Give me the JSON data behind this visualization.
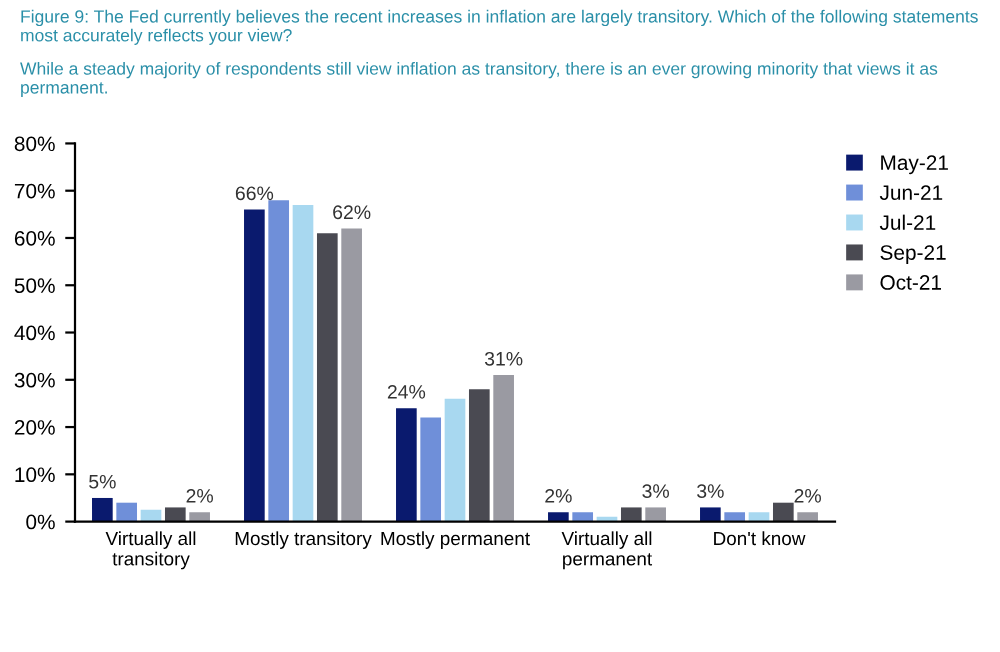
{
  "chart_data": {
    "type": "bar",
    "title": "Figure 9: The Fed currently believes the recent increases in inflation are largely transitory. Which of the following statements most accurately reflects your view?",
    "subtitle": "While a steady majority of respondents still view inflation as transitory, there is an ever growing minority that views it as permanent.",
    "categories": [
      "Virtually all transitory",
      "Mostly transitory",
      "Mostly permanent",
      "Virtually all permanent",
      "Don't know"
    ],
    "series": [
      {
        "name": "May-21",
        "color": "#0a1a6e",
        "values": [
          5,
          66,
          24,
          2,
          3
        ],
        "value_labels": [
          "5%",
          "66%",
          "24%",
          "2%",
          "3%"
        ]
      },
      {
        "name": "Jun-21",
        "color": "#6f8fd9",
        "values": [
          4,
          68,
          22,
          2,
          2
        ]
      },
      {
        "name": "Jul-21",
        "color": "#a8d8f0",
        "values": [
          2.5,
          67,
          26,
          1,
          2
        ]
      },
      {
        "name": "Sep-21",
        "color": "#4a4a52",
        "values": [
          3,
          61,
          28,
          3,
          4
        ]
      },
      {
        "name": "Oct-21",
        "color": "#9a9aa2",
        "values": [
          2,
          62,
          31,
          3,
          2
        ],
        "value_labels": [
          "2%",
          "62%",
          "31%",
          "3%",
          "2%"
        ]
      }
    ],
    "ylim": [
      0,
      80
    ],
    "yticks": [
      {
        "value": 0,
        "label": "0%"
      },
      {
        "value": 10,
        "label": "10%"
      },
      {
        "value": 20,
        "label": "20%"
      },
      {
        "value": 30,
        "label": "30%"
      },
      {
        "value": 40,
        "label": "40%"
      },
      {
        "value": 50,
        "label": "50%"
      },
      {
        "value": 60,
        "label": "60%"
      },
      {
        "value": 70,
        "label": "70%"
      },
      {
        "value": 80,
        "label": "80%"
      }
    ],
    "grid": false,
    "legend": "top right"
  }
}
